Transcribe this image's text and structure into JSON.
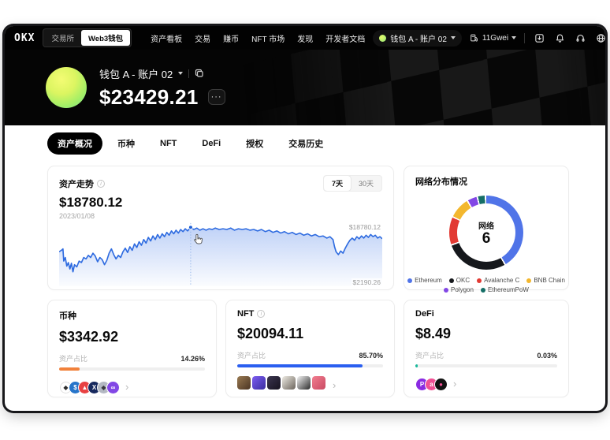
{
  "navbar": {
    "logo": "OKX",
    "toggle": {
      "exchange": "交易所",
      "wallet": "Web3钱包"
    },
    "links": [
      "资产看板",
      "交易",
      "赚币",
      "NFT 市场",
      "发现",
      "开发者文档"
    ],
    "account": "钱包 A - 账户 02",
    "gas": "11Gwei"
  },
  "header": {
    "wallet_name": "钱包 A - 账户 02",
    "balance": "$23429.21",
    "more_label": "···"
  },
  "tabs": [
    "资产概况",
    "币种",
    "NFT",
    "DeFi",
    "授权",
    "交易历史"
  ],
  "chart_data": [
    {
      "type": "line",
      "title": "资产走势",
      "current_value": "$18780.12",
      "current_date": "2023/01/08",
      "range_options": [
        "7天",
        "30天"
      ],
      "active_range": "7天",
      "max_label": "$18780.12",
      "min_label": "$2190.26",
      "y_axis_range": [
        2190.26,
        18780.12
      ],
      "line_color": "#2e6be0",
      "marker_index": 60,
      "points": [
        [
          0,
          42
        ],
        [
          3,
          40
        ],
        [
          5,
          38
        ],
        [
          6,
          55
        ],
        [
          8,
          50
        ],
        [
          10,
          62
        ],
        [
          12,
          57
        ],
        [
          14,
          66
        ],
        [
          16,
          58
        ],
        [
          18,
          70
        ],
        [
          20,
          60
        ],
        [
          23,
          63
        ],
        [
          26,
          55
        ],
        [
          29,
          57
        ],
        [
          32,
          50
        ],
        [
          35,
          52
        ],
        [
          38,
          47
        ],
        [
          41,
          50
        ],
        [
          44,
          44
        ],
        [
          47,
          48
        ],
        [
          50,
          56
        ],
        [
          53,
          50
        ],
        [
          56,
          53
        ],
        [
          59,
          60
        ],
        [
          62,
          54
        ],
        [
          65,
          44
        ],
        [
          68,
          38
        ],
        [
          71,
          46
        ],
        [
          74,
          52
        ],
        [
          77,
          47
        ],
        [
          80,
          50
        ],
        [
          83,
          42
        ],
        [
          86,
          37
        ],
        [
          89,
          43
        ],
        [
          92,
          35
        ],
        [
          95,
          40
        ],
        [
          98,
          31
        ],
        [
          101,
          36
        ],
        [
          104,
          28
        ],
        [
          107,
          33
        ],
        [
          110,
          25
        ],
        [
          113,
          30
        ],
        [
          116,
          22
        ],
        [
          119,
          27
        ],
        [
          122,
          20
        ],
        [
          125,
          25
        ],
        [
          128,
          18
        ],
        [
          131,
          23
        ],
        [
          134,
          17
        ],
        [
          137,
          21
        ],
        [
          140,
          15
        ],
        [
          143,
          19
        ],
        [
          146,
          13
        ],
        [
          149,
          17
        ],
        [
          152,
          12
        ],
        [
          155,
          16
        ],
        [
          158,
          11
        ],
        [
          161,
          14
        ],
        [
          164,
          10
        ],
        [
          167,
          13
        ],
        [
          171,
          8
        ],
        [
          175,
          11
        ],
        [
          179,
          9
        ],
        [
          183,
          12
        ],
        [
          187,
          10
        ],
        [
          191,
          12
        ],
        [
          195,
          10
        ],
        [
          199,
          11
        ],
        [
          203,
          9
        ],
        [
          208,
          11
        ],
        [
          213,
          10
        ],
        [
          218,
          11
        ],
        [
          223,
          9
        ],
        [
          228,
          12
        ],
        [
          233,
          10
        ],
        [
          238,
          11
        ],
        [
          243,
          10
        ],
        [
          248,
          12
        ],
        [
          253,
          11
        ],
        [
          258,
          13
        ],
        [
          263,
          11
        ],
        [
          268,
          14
        ],
        [
          273,
          12
        ],
        [
          278,
          15
        ],
        [
          283,
          13
        ],
        [
          288,
          16
        ],
        [
          293,
          14
        ],
        [
          298,
          17
        ],
        [
          303,
          15
        ],
        [
          308,
          18
        ],
        [
          313,
          16
        ],
        [
          318,
          19
        ],
        [
          323,
          17
        ],
        [
          328,
          20
        ],
        [
          333,
          18
        ],
        [
          338,
          21
        ],
        [
          343,
          20
        ],
        [
          348,
          23
        ],
        [
          352,
          21
        ],
        [
          356,
          25
        ],
        [
          358,
          35
        ],
        [
          360,
          42
        ],
        [
          363,
          46
        ],
        [
          366,
          41
        ],
        [
          369,
          44
        ],
        [
          372,
          37
        ],
        [
          375,
          31
        ],
        [
          378,
          26
        ],
        [
          381,
          23
        ],
        [
          384,
          26
        ],
        [
          387,
          21
        ],
        [
          390,
          24
        ],
        [
          393,
          20
        ],
        [
          396,
          23
        ],
        [
          399,
          19
        ],
        [
          402,
          22
        ],
        [
          405,
          18
        ],
        [
          408,
          21
        ],
        [
          411,
          19
        ],
        [
          414,
          23
        ],
        [
          417,
          21
        ],
        [
          420,
          24
        ]
      ]
    },
    {
      "type": "donut",
      "title": "网络分布情况",
      "center_label": "网络",
      "center_value": "6",
      "legend_position": "bottom",
      "segments": [
        {
          "name": "Ethereum",
          "color": "#5074e8",
          "percent": 42
        },
        {
          "name": "OKC",
          "color": "#16181c",
          "percent": 28
        },
        {
          "name": "Avalanche C",
          "color": "#e23a33",
          "percent": 12
        },
        {
          "name": "BNB Chain",
          "color": "#f3b72e",
          "percent": 9
        },
        {
          "name": "Polygon",
          "color": "#8247e5",
          "percent": 4
        },
        {
          "name": "EthereumPoW",
          "color": "#156e66",
          "percent": 3
        }
      ]
    }
  ],
  "summary_cards": [
    {
      "title": "币种",
      "value": "$3342.92",
      "ratio_label": "资产占比",
      "ratio_value": "14.26%",
      "bar_percent": 14.26,
      "bar_color": "#f1813b",
      "assets": [
        {
          "name": "eth-token",
          "type": "circle",
          "bg": "#ffffff",
          "fg": "#2b2b2b",
          "glyph": "◆",
          "border": "#dcdcdc"
        },
        {
          "name": "usdc-token",
          "type": "circle",
          "bg": "#2775ca",
          "fg": "#ffffff",
          "glyph": "$"
        },
        {
          "name": "avax-token",
          "type": "circle",
          "bg": "#e84142",
          "fg": "#ffffff",
          "glyph": "▲"
        },
        {
          "name": "okb-token",
          "type": "circle",
          "bg": "#17295e",
          "fg": "#ffffff",
          "glyph": "X"
        },
        {
          "name": "ethw-token",
          "type": "circle",
          "bg": "#b3b8c2",
          "fg": "#38383f",
          "glyph": "◆"
        },
        {
          "name": "polygon-token",
          "type": "circle",
          "bg": "#8247e5",
          "fg": "#ffffff",
          "glyph": "∞"
        }
      ]
    },
    {
      "title": "NFT",
      "value": "$20094.11",
      "ratio_label": "资产占比",
      "ratio_value": "85.70%",
      "bar_percent": 85.7,
      "bar_color": "#2b5ff0",
      "assets": [
        {
          "name": "nft-thumb-1",
          "type": "square",
          "bg": "#9a7a52",
          "bg2": "#4a3423"
        },
        {
          "name": "nft-thumb-2",
          "type": "square",
          "bg": "#7e5df2",
          "bg2": "#3b2f9f"
        },
        {
          "name": "nft-thumb-3",
          "type": "square",
          "bg": "#3c3650",
          "bg2": "#16121f"
        },
        {
          "name": "nft-thumb-4",
          "type": "square",
          "bg": "#efece4",
          "bg2": "#6b645c"
        },
        {
          "name": "nft-thumb-5",
          "type": "square",
          "bg": "#f5f5f5",
          "bg2": "#2a2a2a"
        },
        {
          "name": "nft-thumb-6",
          "type": "square",
          "bg": "#f27e90",
          "bg2": "#c94a62"
        }
      ]
    },
    {
      "title": "DeFi",
      "value": "$8.49",
      "ratio_label": "资产占比",
      "ratio_value": "0.03%",
      "bar_percent": 0.03,
      "bar_color": "#19b89b",
      "assets": [
        {
          "name": "defi-protocol-1",
          "type": "circle",
          "bg": "#8a2be2",
          "fg": "#ffffff",
          "glyph": "P"
        },
        {
          "name": "defi-protocol-2",
          "type": "circle",
          "bg": "#f04f93",
          "fg": "#ffffff",
          "glyph": "a"
        },
        {
          "name": "defi-protocol-3",
          "type": "circle",
          "bg": "#111111",
          "fg": "#f04f93",
          "glyph": "●"
        }
      ]
    }
  ]
}
